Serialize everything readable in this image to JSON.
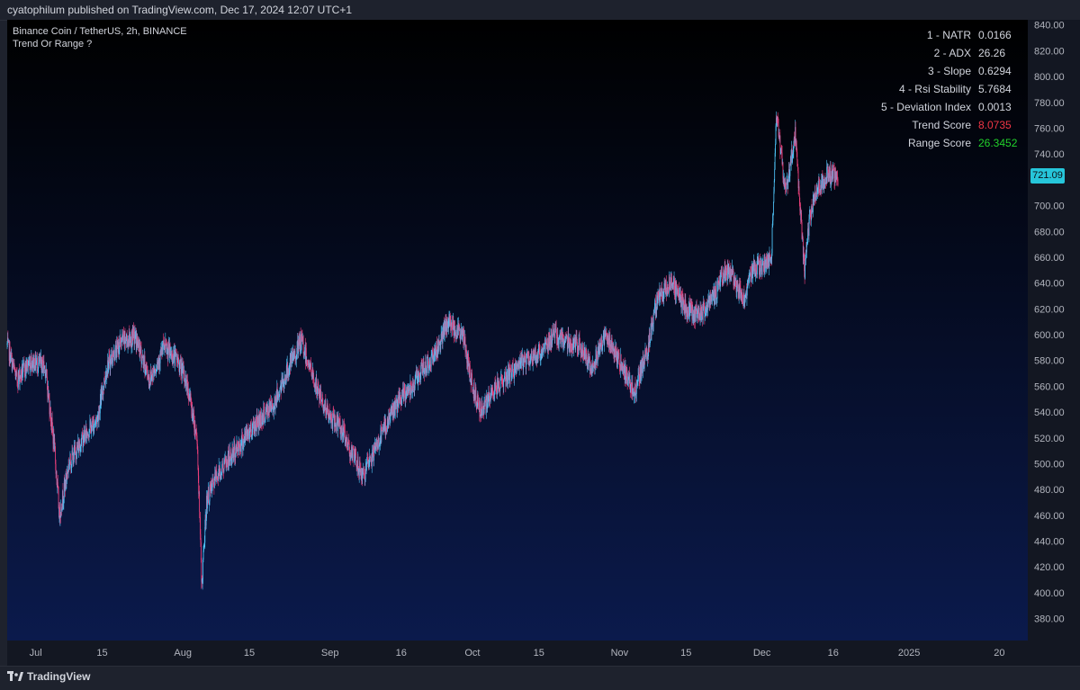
{
  "header": {
    "published": "cyatophilum published on TradingView.com, Dec 17, 2024 12:07 UTC+1"
  },
  "legend": {
    "symbol": "Binance Coin / TetherUS, 2h, BINANCE",
    "indicator": "Trend Or Range ?"
  },
  "metrics": [
    {
      "label": "1 - NATR",
      "value": "0.0166",
      "color": "#d1d4dc"
    },
    {
      "label": "2 - ADX",
      "value": "26.26",
      "color": "#d1d4dc"
    },
    {
      "label": "3 - Slope",
      "value": "0.6294",
      "color": "#d1d4dc"
    },
    {
      "label": "4 - Rsi Stability",
      "value": "5.7684",
      "color": "#d1d4dc"
    },
    {
      "label": "5 - Deviation Index",
      "value": "0.0013",
      "color": "#d1d4dc"
    },
    {
      "label": "Trend Score",
      "value": "8.0735",
      "color": "#f23645"
    },
    {
      "label": "Range Score",
      "value": "26.3452",
      "color": "#22d12b"
    }
  ],
  "price_tag": "721.09",
  "footer": {
    "brand": "TradingView"
  },
  "colors": {
    "up": "#4fc3f7",
    "down": "#ec407a",
    "bg_top": "#000000",
    "bg_bottom": "#0b1a4c",
    "price_tag": "#26c6da"
  },
  "chart_data": {
    "type": "candlestick",
    "title": "Binance Coin / TetherUS, 2h, BINANCE",
    "y_ticks": [
      "840.00",
      "820.00",
      "800.00",
      "780.00",
      "760.00",
      "740.00",
      "720.00",
      "700.00",
      "680.00",
      "660.00",
      "640.00",
      "620.00",
      "600.00",
      "580.00",
      "560.00",
      "540.00",
      "520.00",
      "500.00",
      "480.00",
      "460.00",
      "440.00",
      "420.00",
      "400.00",
      "380.00"
    ],
    "y_tick_values": [
      840,
      820,
      800,
      780,
      760,
      740,
      720,
      700,
      680,
      660,
      640,
      620,
      600,
      580,
      560,
      540,
      520,
      500,
      480,
      460,
      440,
      420,
      400,
      380
    ],
    "ylim": [
      363,
      844
    ],
    "x_ticks": [
      "Jul",
      "15",
      "Aug",
      "15",
      "Sep",
      "16",
      "Oct",
      "15",
      "Nov",
      "15",
      "Dec",
      "16",
      "2025",
      "20"
    ],
    "x_tick_dates": [
      "2024-07-01",
      "2024-07-15",
      "2024-08-01",
      "2024-08-15",
      "2024-09-01",
      "2024-09-16",
      "2024-10-01",
      "2024-10-15",
      "2024-11-01",
      "2024-11-15",
      "2024-12-01",
      "2024-12-16",
      "2025-01-01",
      "2025-01-20"
    ],
    "xlim": [
      "2024-06-25",
      "2025-01-26"
    ],
    "last_price": 721.09,
    "path": [
      [
        "2024-06-25",
        592
      ],
      [
        "2024-06-27",
        565
      ],
      [
        "2024-06-30",
        580
      ],
      [
        "2024-07-03",
        575
      ],
      [
        "2024-07-05",
        510
      ],
      [
        "2024-07-06",
        460
      ],
      [
        "2024-07-08",
        500
      ],
      [
        "2024-07-11",
        520
      ],
      [
        "2024-07-14",
        535
      ],
      [
        "2024-07-16",
        575
      ],
      [
        "2024-07-19",
        595
      ],
      [
        "2024-07-22",
        598
      ],
      [
        "2024-07-25",
        565
      ],
      [
        "2024-07-28",
        590
      ],
      [
        "2024-07-31",
        580
      ],
      [
        "2024-08-02",
        560
      ],
      [
        "2024-08-04",
        520
      ],
      [
        "2024-08-05",
        405
      ],
      [
        "2024-08-06",
        470
      ],
      [
        "2024-08-08",
        490
      ],
      [
        "2024-08-12",
        510
      ],
      [
        "2024-08-16",
        530
      ],
      [
        "2024-08-20",
        545
      ],
      [
        "2024-08-24",
        580
      ],
      [
        "2024-08-26",
        595
      ],
      [
        "2024-08-29",
        560
      ],
      [
        "2024-09-01",
        535
      ],
      [
        "2024-09-03",
        530
      ],
      [
        "2024-09-06",
        505
      ],
      [
        "2024-09-08",
        490
      ],
      [
        "2024-09-11",
        515
      ],
      [
        "2024-09-14",
        540
      ],
      [
        "2024-09-17",
        555
      ],
      [
        "2024-09-20",
        570
      ],
      [
        "2024-09-23",
        585
      ],
      [
        "2024-09-26",
        610
      ],
      [
        "2024-09-29",
        600
      ],
      [
        "2024-10-01",
        560
      ],
      [
        "2024-10-03",
        540
      ],
      [
        "2024-10-06",
        560
      ],
      [
        "2024-10-09",
        570
      ],
      [
        "2024-10-12",
        580
      ],
      [
        "2024-10-15",
        585
      ],
      [
        "2024-10-18",
        600
      ],
      [
        "2024-10-21",
        595
      ],
      [
        "2024-10-24",
        590
      ],
      [
        "2024-10-26",
        575
      ],
      [
        "2024-10-29",
        600
      ],
      [
        "2024-11-01",
        580
      ],
      [
        "2024-11-04",
        555
      ],
      [
        "2024-11-07",
        590
      ],
      [
        "2024-11-09",
        630
      ],
      [
        "2024-11-12",
        640
      ],
      [
        "2024-11-15",
        620
      ],
      [
        "2024-11-18",
        615
      ],
      [
        "2024-11-21",
        630
      ],
      [
        "2024-11-23",
        650
      ],
      [
        "2024-11-25",
        645
      ],
      [
        "2024-11-27",
        625
      ],
      [
        "2024-11-29",
        650
      ],
      [
        "2024-12-02",
        655
      ],
      [
        "2024-12-03",
        660
      ],
      [
        "2024-12-04",
        770
      ],
      [
        "2024-12-05",
        740
      ],
      [
        "2024-12-06",
        710
      ],
      [
        "2024-12-08",
        755
      ],
      [
        "2024-12-09",
        700
      ],
      [
        "2024-12-10",
        650
      ],
      [
        "2024-12-11",
        690
      ],
      [
        "2024-12-13",
        715
      ],
      [
        "2024-12-15",
        725
      ],
      [
        "2024-12-17",
        721
      ]
    ]
  }
}
